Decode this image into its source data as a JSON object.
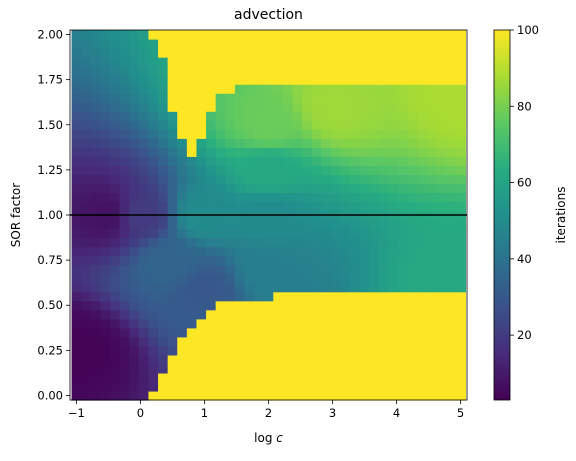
{
  "chart_data": {
    "type": "heatmap",
    "title": "advection",
    "xlabel": "log c",
    "ylabel": "SOR factor",
    "colorbar_label": "iterations",
    "colormap": "viridis",
    "color_range": [
      3,
      100
    ],
    "colorbar_ticks": [
      "20",
      "40",
      "60",
      "80",
      "100"
    ],
    "xlim": [
      -1.1,
      5.1
    ],
    "ylim": [
      -0.025,
      2.025
    ],
    "x_ticks": [
      "−1",
      "0",
      "1",
      "2",
      "3",
      "4",
      "5"
    ],
    "y_ticks": [
      "0.00",
      "0.25",
      "0.50",
      "0.75",
      "1.00",
      "1.25",
      "1.50",
      "1.75",
      "2.00"
    ],
    "grid": false,
    "reference_line": {
      "y": 1.0,
      "color": "#000000"
    },
    "x_cells": {
      "start": -1.0,
      "step": 0.15,
      "count": 41
    },
    "y_cells": {
      "start": 0.0,
      "step": 0.05,
      "count": 41
    },
    "cap_value": 100,
    "regions": {
      "low_sor_boundary": [
        [
          -1.0,
          0.0
        ],
        [
          0.15,
          0.0
        ],
        [
          0.3,
          0.1
        ],
        [
          0.45,
          0.2
        ],
        [
          0.6,
          0.3
        ],
        [
          0.9,
          0.4
        ],
        [
          1.2,
          0.5
        ],
        [
          2.0,
          0.55
        ],
        [
          3.2,
          0.57
        ],
        [
          5.0,
          0.58
        ]
      ],
      "high_sor_boundary": [
        [
          -1.0,
          2.1
        ],
        [
          0.15,
          2.0
        ],
        [
          0.35,
          1.9
        ],
        [
          0.5,
          1.55
        ],
        [
          0.7,
          1.4
        ],
        [
          0.85,
          1.32
        ],
        [
          1.0,
          1.5
        ],
        [
          1.2,
          1.65
        ],
        [
          1.4,
          1.7
        ],
        [
          5.0,
          1.72
        ]
      ]
    },
    "iteration_samples": [
      {
        "x": -1.0,
        "y": 0.25,
        "value": 4
      },
      {
        "x": -0.5,
        "y": 1.0,
        "value": 8
      },
      {
        "x": 0.0,
        "y": 1.0,
        "value": 20
      },
      {
        "x": 0.5,
        "y": 0.75,
        "value": 35
      },
      {
        "x": 1.0,
        "y": 1.0,
        "value": 50
      },
      {
        "x": 1.0,
        "y": 0.6,
        "value": 30
      },
      {
        "x": 2.0,
        "y": 0.7,
        "value": 45
      },
      {
        "x": 2.0,
        "y": 1.0,
        "value": 50
      },
      {
        "x": 2.0,
        "y": 1.25,
        "value": 62
      },
      {
        "x": 2.0,
        "y": 1.5,
        "value": 78
      },
      {
        "x": 3.0,
        "y": 1.6,
        "value": 86
      },
      {
        "x": 5.0,
        "y": 1.7,
        "value": 88
      },
      {
        "x": 5.0,
        "y": 0.6,
        "value": 62
      }
    ]
  }
}
